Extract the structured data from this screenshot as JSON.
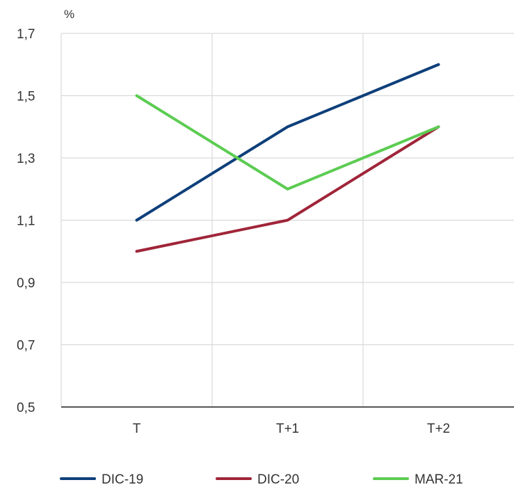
{
  "chart_data": {
    "type": "line",
    "title": "",
    "unit_label": "%",
    "xlabel": "",
    "ylabel": "%",
    "categories": [
      "T",
      "T+1",
      "T+2"
    ],
    "ylim": [
      0.5,
      1.7
    ],
    "yticks": [
      0.5,
      0.7,
      0.9,
      1.1,
      1.3,
      1.5,
      1.7
    ],
    "ytick_labels": [
      "0,5",
      "0,7",
      "0,9",
      "1,1",
      "1,3",
      "1,5",
      "1,7"
    ],
    "grid": true,
    "legend_position": "bottom",
    "series": [
      {
        "name": "DIC-19",
        "color": "#0e3f7a",
        "values": [
          1.1,
          1.4,
          1.6
        ]
      },
      {
        "name": "DIC-20",
        "color": "#a02539",
        "values": [
          1.0,
          1.1,
          1.4
        ]
      },
      {
        "name": "MAR-21",
        "color": "#5ccc52",
        "values": [
          1.5,
          1.2,
          1.4
        ]
      }
    ]
  }
}
